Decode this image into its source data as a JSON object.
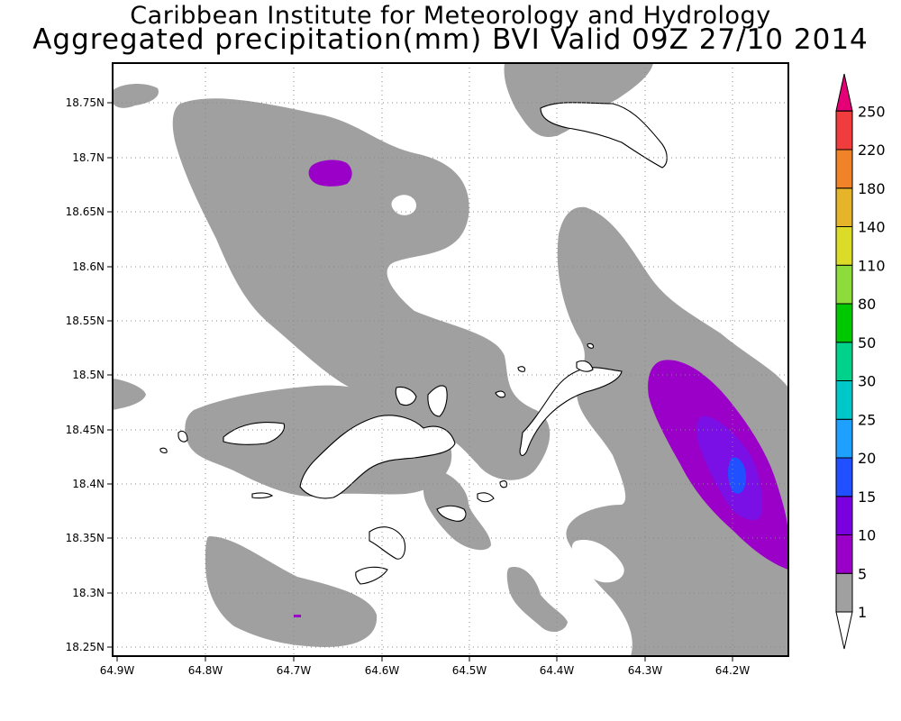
{
  "header": {
    "line1": "Caribbean Institute for Meteorology and Hydrology",
    "line2": "Aggregated precipitation(mm) BVI Valid 09Z 27/10 2014"
  },
  "map": {
    "lon_ticks": [
      "64.9W",
      "64.8W",
      "64.7W",
      "64.6W",
      "64.5W",
      "64.4W",
      "64.3W",
      "64.2W"
    ],
    "lat_ticks": [
      "18.75N",
      "18.7N",
      "18.65N",
      "18.6N",
      "18.55N",
      "18.5N",
      "18.45N",
      "18.4N",
      "18.35N",
      "18.3N",
      "18.25N"
    ],
    "lon_range": [
      -64.9,
      -64.15
    ],
    "lat_range": [
      18.245,
      18.795
    ],
    "grid": "dotted"
  },
  "colorbar": {
    "levels": [
      "1",
      "5",
      "10",
      "15",
      "20",
      "25",
      "30",
      "50",
      "80",
      "110",
      "140",
      "180",
      "220",
      "250"
    ],
    "colors": [
      "#a0a0a0",
      "#9a00c8",
      "#7a00e0",
      "#2050ff",
      "#1ea0ff",
      "#00c8c8",
      "#00d28c",
      "#00c800",
      "#8cdc3c",
      "#dcdc28",
      "#e6b428",
      "#f08228",
      "#f03c3c",
      "#e60078"
    ]
  },
  "precip_colors": {
    "light": "#a0a0a0",
    "p5": "#9a00c8",
    "p10": "#7a10e6",
    "p15": "#2050ff",
    "spot": "#9a00c8"
  }
}
